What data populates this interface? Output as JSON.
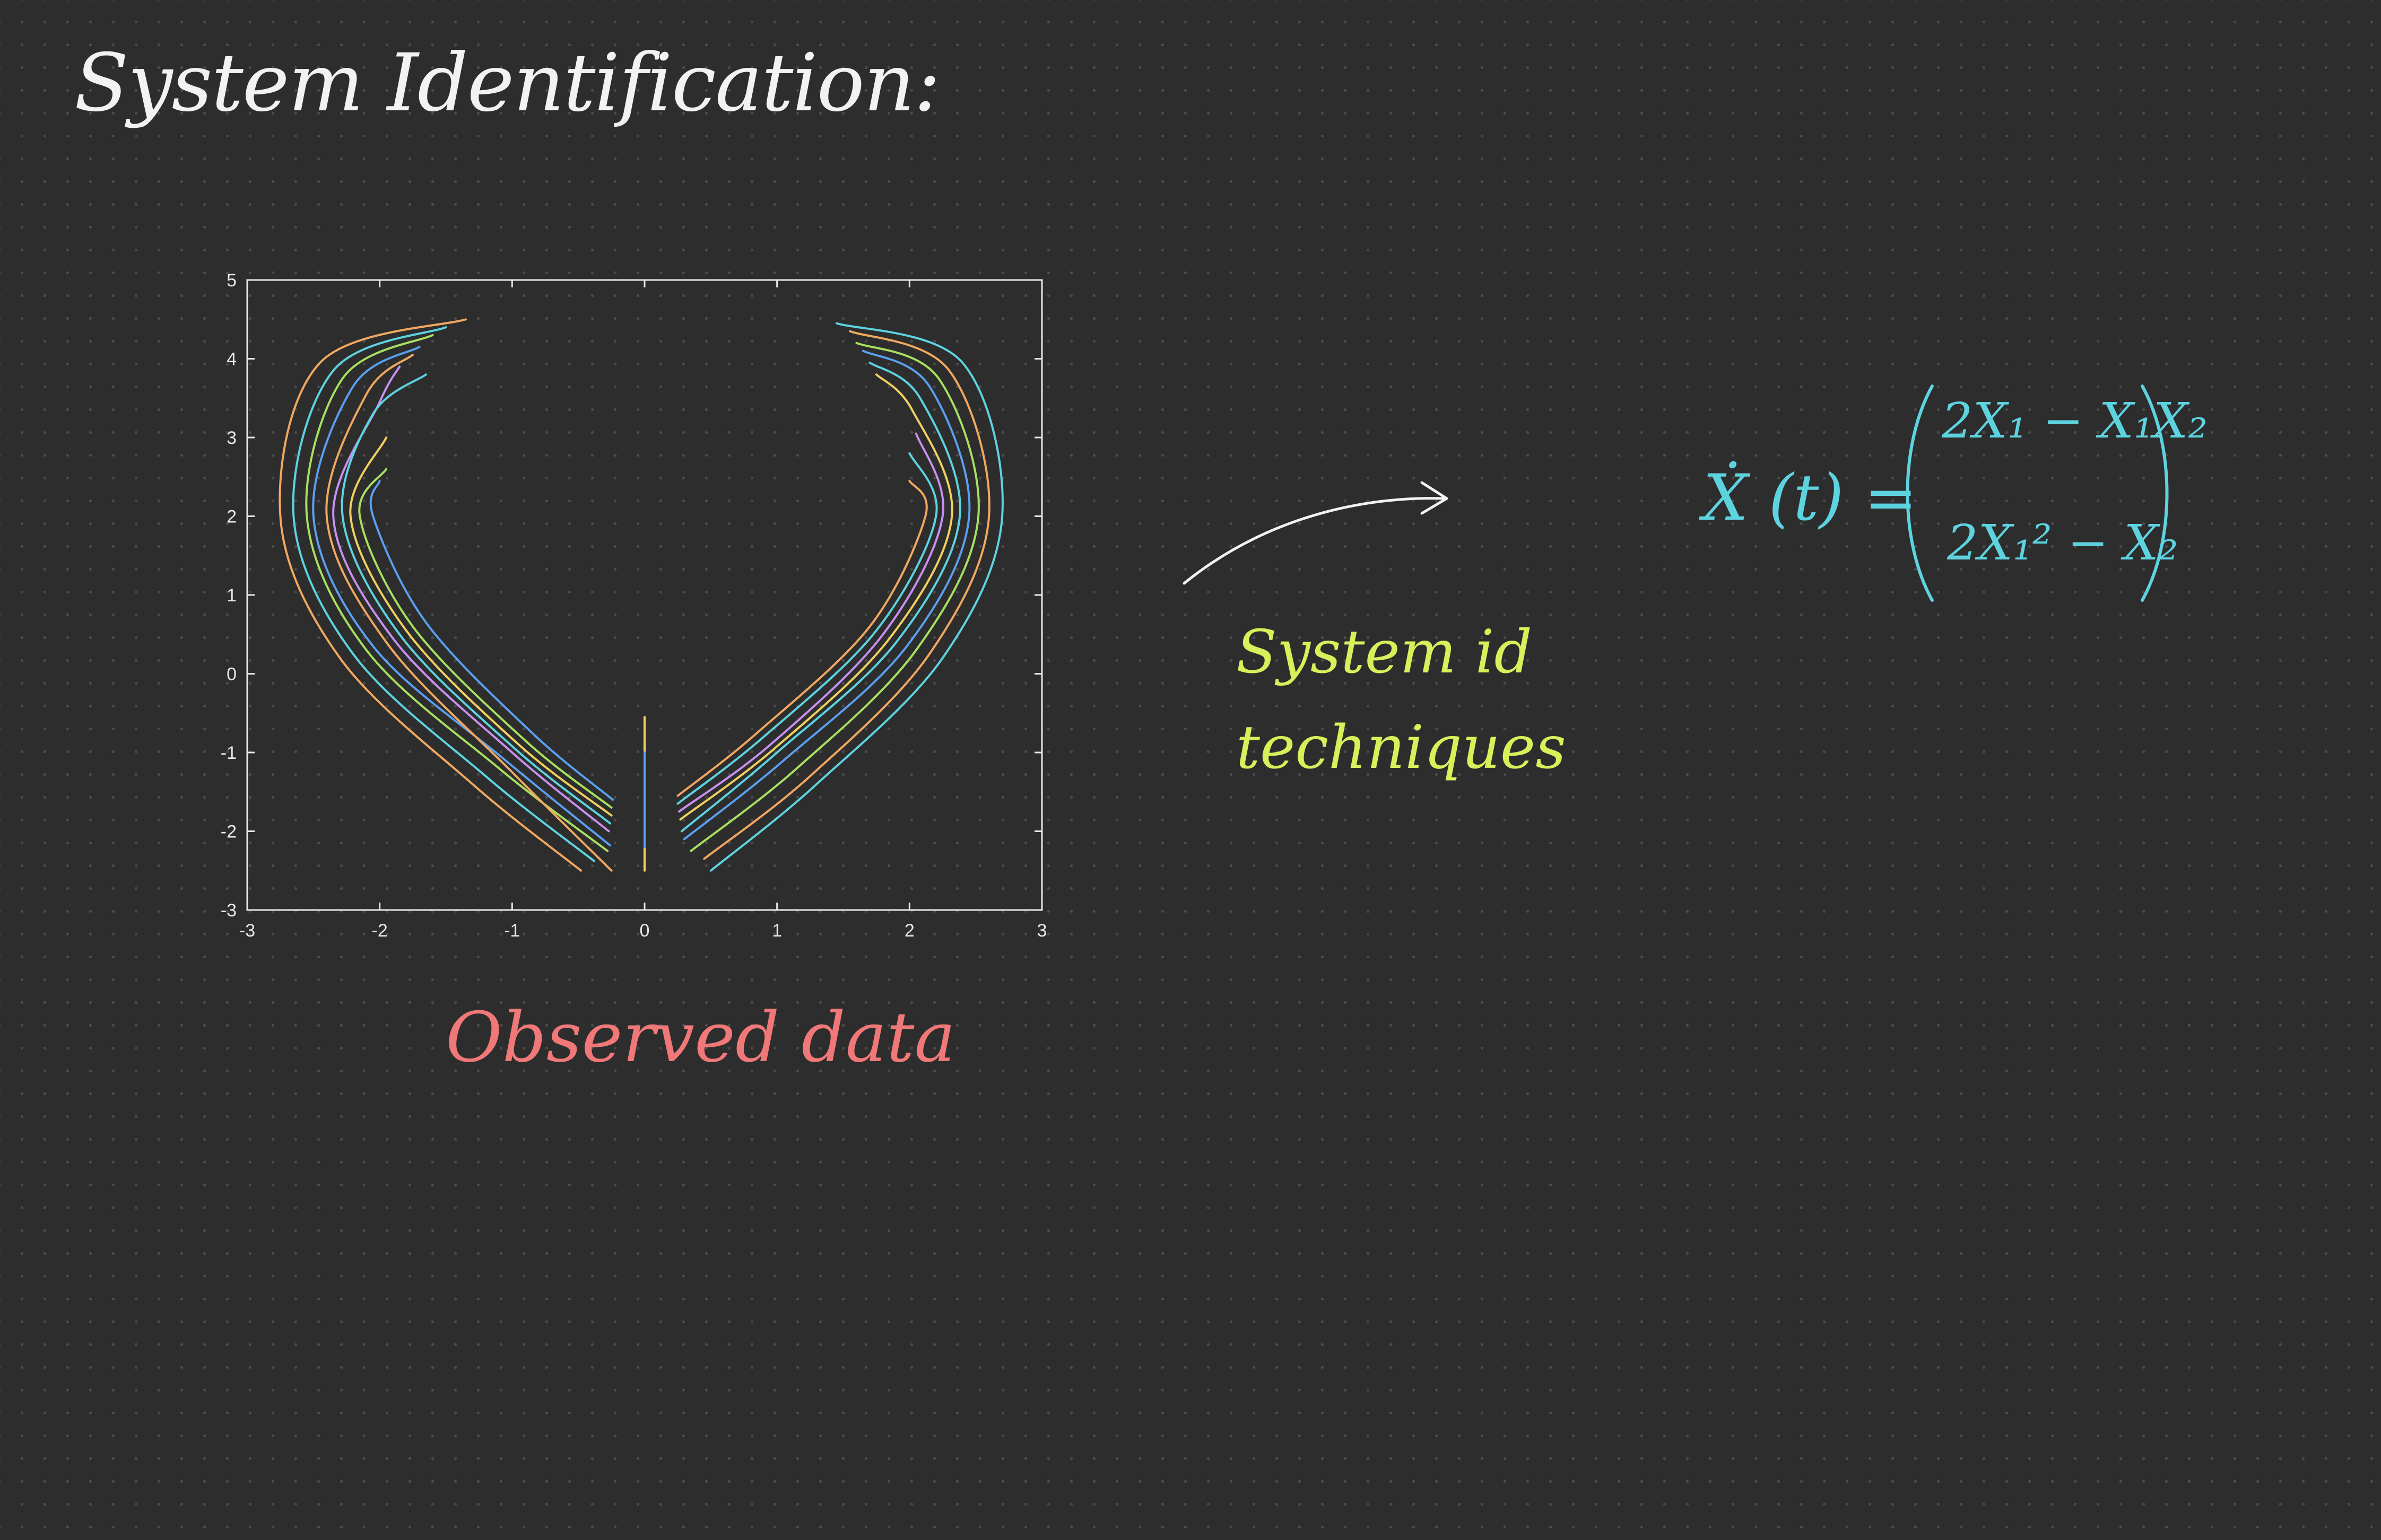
{
  "title": "System Identification:",
  "caption": "Observed data",
  "note": {
    "line1": "System id",
    "line2": "techniques"
  },
  "equation": {
    "lhs": "Ẋ (t) =",
    "row1": "2X₁ − X₁X₂",
    "row2": "2X₁² − X₂"
  },
  "colors": {
    "background": "#2d2d2d",
    "title": "#f2f2f2",
    "caption": "#f07878",
    "note": "#d8f05a",
    "equation": "#5ed3e0",
    "arrow": "#f2f2f2",
    "axes": "#e8e8e8"
  },
  "chart_data": {
    "type": "line",
    "title": "",
    "xlabel": "",
    "ylabel": "",
    "xlim": [
      -3,
      3
    ],
    "ylim": [
      -3,
      5
    ],
    "xticks": [
      "-3",
      "-2",
      "-1",
      "0",
      "1",
      "2",
      "3"
    ],
    "yticks": [
      "-3",
      "-2",
      "-1",
      "0",
      "1",
      "2",
      "3",
      "4",
      "5"
    ],
    "grid": false,
    "series": [
      {
        "color": "#f0a860",
        "points": [
          [
            -0.48,
            -2.5
          ],
          [
            -1.3,
            -1.4
          ],
          [
            -2.3,
            0.2
          ],
          [
            -2.75,
            2.0
          ],
          [
            -2.45,
            3.95
          ],
          [
            -1.35,
            4.5
          ]
        ]
      },
      {
        "color": "#5ed3e0",
        "points": [
          [
            -0.38,
            -2.38
          ],
          [
            -1.2,
            -1.3
          ],
          [
            -2.2,
            0.25
          ],
          [
            -2.65,
            2.0
          ],
          [
            -2.35,
            3.85
          ],
          [
            -1.5,
            4.4
          ]
        ]
      },
      {
        "color": "#a8e060",
        "points": [
          [
            -0.28,
            -2.25
          ],
          [
            -1.1,
            -1.2
          ],
          [
            -2.1,
            0.3
          ],
          [
            -2.55,
            2.0
          ],
          [
            -2.28,
            3.75
          ],
          [
            -1.6,
            4.3
          ]
        ]
      },
      {
        "color": "#5aa0f0",
        "points": [
          [
            -0.26,
            -2.18
          ],
          [
            -1.05,
            -1.1
          ],
          [
            -2.05,
            0.35
          ],
          [
            -2.5,
            2.0
          ],
          [
            -2.2,
            3.65
          ],
          [
            -1.7,
            4.15
          ]
        ]
      },
      {
        "color": "#f0a860",
        "points": [
          [
            -0.25,
            -2.5
          ],
          [
            -1.0,
            -1.25
          ],
          [
            -1.95,
            0.4
          ],
          [
            -2.4,
            2.0
          ],
          [
            -2.1,
            3.55
          ],
          [
            -1.75,
            4.05
          ]
        ]
      },
      {
        "color": "#c890f0",
        "points": [
          [
            -0.27,
            -2.0
          ],
          [
            -1.0,
            -1.0
          ],
          [
            -1.9,
            0.45
          ],
          [
            -2.35,
            2.0
          ],
          [
            -2.0,
            3.45
          ],
          [
            -1.85,
            3.9
          ]
        ]
      },
      {
        "color": "#5ed3e0",
        "points": [
          [
            -0.26,
            -1.9
          ],
          [
            -0.98,
            -0.95
          ],
          [
            -1.85,
            0.5
          ],
          [
            -2.28,
            2.0
          ],
          [
            -2.05,
            3.3
          ],
          [
            -1.65,
            3.8
          ]
        ]
      },
      {
        "color": "#f0d060",
        "points": [
          [
            -0.25,
            -1.8
          ],
          [
            -0.95,
            -0.9
          ],
          [
            -1.8,
            0.55
          ],
          [
            -2.22,
            2.0
          ],
          [
            -1.95,
            3.0
          ]
        ]
      },
      {
        "color": "#a8e060",
        "points": [
          [
            -0.25,
            -1.7
          ],
          [
            -0.9,
            -0.85
          ],
          [
            -1.75,
            0.6
          ],
          [
            -2.15,
            2.0
          ],
          [
            -1.95,
            2.6
          ]
        ]
      },
      {
        "color": "#5aa0f0",
        "points": [
          [
            -0.24,
            -1.6
          ],
          [
            -0.85,
            -0.75
          ],
          [
            -1.65,
            0.65
          ],
          [
            -2.05,
            2.0
          ],
          [
            -2.0,
            2.45
          ]
        ]
      },
      {
        "color": "#f0d060",
        "points": [
          [
            0.0,
            -2.5
          ],
          [
            0.0,
            -0.55
          ]
        ]
      },
      {
        "color": "#5aa0f0",
        "points": [
          [
            0.0,
            -2.2
          ],
          [
            0.0,
            -1.0
          ]
        ]
      },
      {
        "color": "#5ed3e0",
        "points": [
          [
            0.5,
            -2.5
          ],
          [
            1.3,
            -1.4
          ],
          [
            2.25,
            0.2
          ],
          [
            2.7,
            2.0
          ],
          [
            2.4,
            3.95
          ],
          [
            1.45,
            4.45
          ]
        ]
      },
      {
        "color": "#f0a860",
        "points": [
          [
            0.45,
            -2.35
          ],
          [
            1.25,
            -1.3
          ],
          [
            2.15,
            0.25
          ],
          [
            2.6,
            2.0
          ],
          [
            2.3,
            3.85
          ],
          [
            1.55,
            4.35
          ]
        ]
      },
      {
        "color": "#a8e060",
        "points": [
          [
            0.35,
            -2.25
          ],
          [
            1.15,
            -1.2
          ],
          [
            2.05,
            0.3
          ],
          [
            2.52,
            2.0
          ],
          [
            2.22,
            3.75
          ],
          [
            1.6,
            4.2
          ]
        ]
      },
      {
        "color": "#5aa0f0",
        "points": [
          [
            0.3,
            -2.1
          ],
          [
            1.05,
            -1.1
          ],
          [
            1.98,
            0.35
          ],
          [
            2.45,
            2.0
          ],
          [
            2.15,
            3.65
          ],
          [
            1.65,
            4.1
          ]
        ]
      },
      {
        "color": "#5ed3e0",
        "points": [
          [
            0.28,
            -2.0
          ],
          [
            1.0,
            -1.0
          ],
          [
            1.9,
            0.4
          ],
          [
            2.38,
            2.0
          ],
          [
            2.08,
            3.5
          ],
          [
            1.7,
            3.95
          ]
        ]
      },
      {
        "color": "#f0d060",
        "points": [
          [
            0.27,
            -1.85
          ],
          [
            0.98,
            -0.95
          ],
          [
            1.85,
            0.45
          ],
          [
            2.32,
            2.0
          ],
          [
            2.02,
            3.35
          ],
          [
            1.75,
            3.8
          ]
        ]
      },
      {
        "color": "#c890f0",
        "points": [
          [
            0.26,
            -1.75
          ],
          [
            0.95,
            -0.9
          ],
          [
            1.8,
            0.5
          ],
          [
            2.25,
            2.0
          ],
          [
            2.05,
            3.05
          ]
        ]
      },
      {
        "color": "#5ed3e0",
        "points": [
          [
            0.25,
            -1.65
          ],
          [
            0.9,
            -0.8
          ],
          [
            1.75,
            0.55
          ],
          [
            2.2,
            2.0
          ],
          [
            2.0,
            2.8
          ]
        ]
      },
      {
        "color": "#f0a860",
        "points": [
          [
            0.25,
            -1.55
          ],
          [
            0.85,
            -0.75
          ],
          [
            1.7,
            0.6
          ],
          [
            2.12,
            2.0
          ],
          [
            2.0,
            2.45
          ]
        ]
      }
    ]
  }
}
